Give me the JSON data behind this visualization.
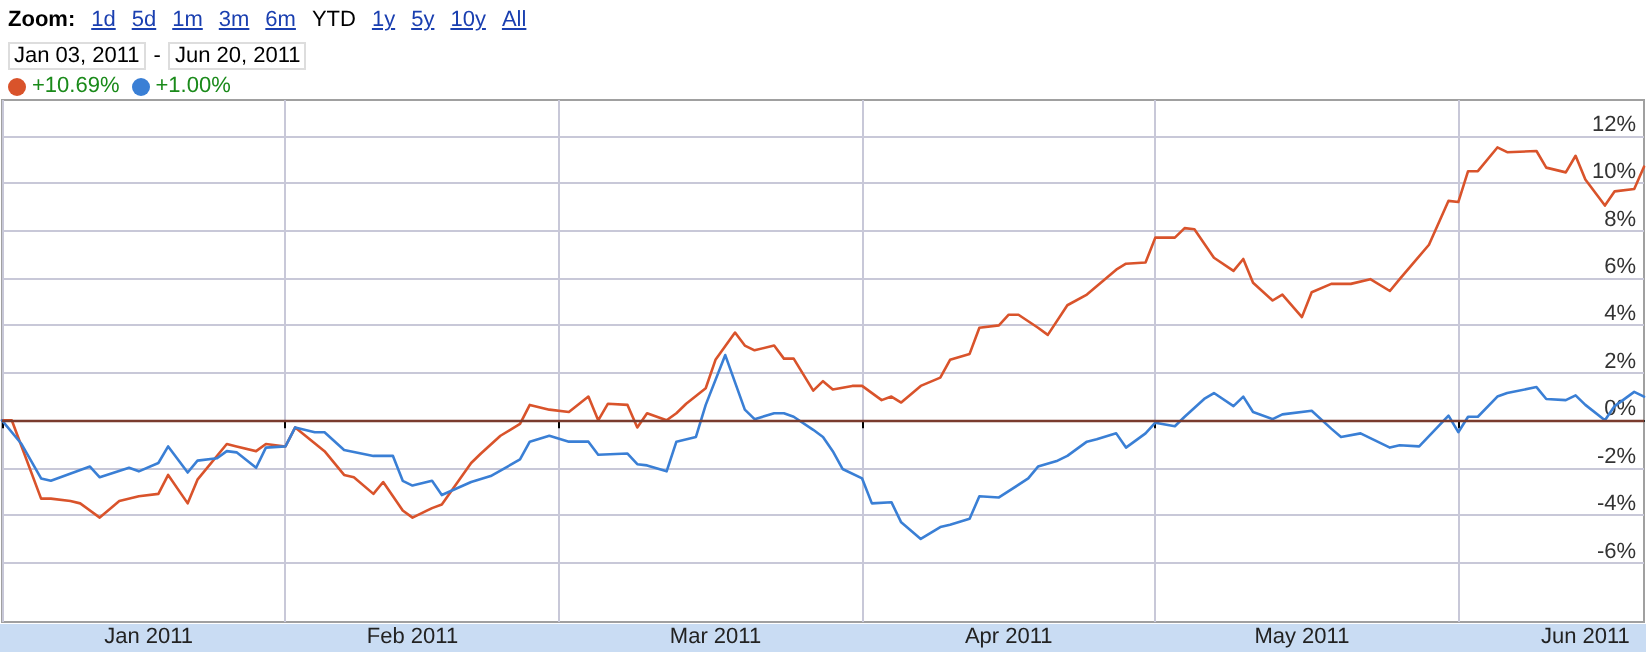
{
  "chart_data": {
    "type": "line",
    "annotations": [
      "Zoom:",
      "1d",
      "5d",
      "1m",
      "3m",
      "6m",
      "YTD",
      "1y",
      "5y",
      "10y",
      "All",
      "Jan 03, 2011",
      "-",
      "Jun 20, 2011",
      "+10.69%",
      "+1.00%"
    ],
    "xlim": [
      "2011-01-03",
      "2011-06-20"
    ],
    "xticks": [
      {
        "value": "2011-01-03",
        "label": null
      },
      {
        "value": "2011-01-18",
        "label": "Jan 2011"
      },
      {
        "value": "2011-02-01",
        "label": null
      },
      {
        "value": "2011-02-14",
        "label": "Feb 2011"
      },
      {
        "value": "2011-03-01",
        "label": null
      },
      {
        "value": "2011-03-17",
        "label": "Mar 2011"
      },
      {
        "value": "2011-04-01",
        "label": null
      },
      {
        "value": "2011-04-16",
        "label": "Apr 2011"
      },
      {
        "value": "2011-05-01",
        "label": null
      },
      {
        "value": "2011-05-16",
        "label": "May 2011"
      },
      {
        "value": "2011-06-01",
        "label": null
      },
      {
        "value": "2011-06-14",
        "label": "Jun 2011"
      }
    ],
    "ylim": [
      -8.5,
      13.5
    ],
    "yticks": [
      {
        "value": -6,
        "label": "-6%"
      },
      {
        "value": -4,
        "label": "-4%"
      },
      {
        "value": -2,
        "label": "-2%"
      },
      {
        "value": 0,
        "label": "0%"
      },
      {
        "value": 2,
        "label": "2%"
      },
      {
        "value": 4,
        "label": "4%"
      },
      {
        "value": 6,
        "label": "6%"
      },
      {
        "value": 8,
        "label": "8%"
      },
      {
        "value": 10,
        "label": "10%"
      },
      {
        "value": 12,
        "label": "12%"
      }
    ],
    "grid": true,
    "marker": "none",
    "line_style": "solid",
    "ref_lines": [
      {
        "axis": "y",
        "value": 0,
        "color": "#7a3b2e"
      }
    ],
    "series": [
      {
        "color": "#d9532b",
        "x": [
          "2011-01-03",
          "2011-01-04",
          "2011-01-07",
          "2011-01-08",
          "2011-01-10",
          "2011-01-11",
          "2011-01-13",
          "2011-01-15",
          "2011-01-17",
          "2011-01-19",
          "2011-01-20",
          "2011-01-22",
          "2011-01-23",
          "2011-01-26",
          "2011-01-27",
          "2011-01-29",
          "2011-01-30",
          "2011-02-01",
          "2011-02-02",
          "2011-02-05",
          "2011-02-07",
          "2011-02-08",
          "2011-02-10",
          "2011-02-11",
          "2011-02-13",
          "2011-02-14",
          "2011-02-16",
          "2011-02-17",
          "2011-02-20",
          "2011-02-21",
          "2011-02-23",
          "2011-02-25",
          "2011-02-26",
          "2011-02-28",
          "2011-03-02",
          "2011-03-04",
          "2011-03-05",
          "2011-03-06",
          "2011-03-08",
          "2011-03-09",
          "2011-03-10",
          "2011-03-12",
          "2011-03-13",
          "2011-03-14",
          "2011-03-16",
          "2011-03-17",
          "2011-03-19",
          "2011-03-20",
          "2011-03-21",
          "2011-03-23",
          "2011-03-24",
          "2011-03-25",
          "2011-03-27",
          "2011-03-28",
          "2011-03-29",
          "2011-03-31",
          "2011-04-01",
          "2011-04-03",
          "2011-04-04",
          "2011-04-05",
          "2011-04-07",
          "2011-04-09",
          "2011-04-10",
          "2011-04-12",
          "2011-04-13",
          "2011-04-15",
          "2011-04-16",
          "2011-04-17",
          "2011-04-19",
          "2011-04-20",
          "2011-04-22",
          "2011-04-24",
          "2011-04-27",
          "2011-04-28",
          "2011-04-30",
          "2011-05-01",
          "2011-05-03",
          "2011-05-04",
          "2011-05-05",
          "2011-05-07",
          "2011-05-09",
          "2011-05-10",
          "2011-05-11",
          "2011-05-13",
          "2011-05-14",
          "2011-05-16",
          "2011-05-17",
          "2011-05-19",
          "2011-05-21",
          "2011-05-23",
          "2011-05-25",
          "2011-05-26",
          "2011-05-29",
          "2011-05-31",
          "2011-06-01",
          "2011-06-02",
          "2011-06-03",
          "2011-06-05",
          "2011-06-06",
          "2011-06-09",
          "2011-06-10",
          "2011-06-12",
          "2011-06-13",
          "2011-06-14",
          "2011-06-16",
          "2011-06-17",
          "2011-06-19",
          "2011-06-20"
        ],
        "values": [
          0,
          0,
          -3.3,
          -3.3,
          -3.4,
          -3.5,
          -4.1,
          -3.4,
          -3.2,
          -3.1,
          -2.3,
          -3.5,
          -2.5,
          -1.0,
          -1.1,
          -1.3,
          -1.0,
          -1.1,
          -0.3,
          -1.3,
          -2.3,
          -2.4,
          -3.1,
          -2.6,
          -3.8,
          -4.1,
          -3.7,
          -3.55,
          -1.8,
          -1.4,
          -0.65,
          -0.15,
          0.65,
          0.45,
          0.35,
          1.0,
          0,
          0.7,
          0.65,
          -0.3,
          0.3,
          0,
          0.3,
          0.7,
          1.35,
          2.55,
          3.7,
          3.15,
          2.95,
          3.15,
          2.6,
          2.6,
          1.25,
          1.65,
          1.3,
          1.45,
          1.45,
          0.85,
          1.0,
          0.75,
          1.45,
          1.8,
          2.55,
          2.8,
          3.9,
          4.0,
          4.45,
          4.45,
          3.9,
          3.6,
          4.85,
          5.3,
          6.35,
          6.6,
          6.65,
          7.7,
          7.7,
          8.1,
          8.05,
          6.85,
          6.3,
          6.8,
          5.8,
          5.05,
          5.3,
          4.35,
          5.4,
          5.75,
          5.75,
          5.95,
          5.45,
          5.95,
          7.4,
          9.25,
          9.2,
          10.5,
          10.5,
          11.5,
          11.3,
          11.35,
          10.65,
          10.45,
          11.15,
          10.15,
          9.05,
          9.65,
          9.75,
          10.69
        ]
      },
      {
        "color": "#3a7fd5",
        "x": [
          "2011-01-03",
          "2011-01-05",
          "2011-01-07",
          "2011-01-08",
          "2011-01-12",
          "2011-01-13",
          "2011-01-16",
          "2011-01-17",
          "2011-01-19",
          "2011-01-20",
          "2011-01-22",
          "2011-01-23",
          "2011-01-25",
          "2011-01-26",
          "2011-01-27",
          "2011-01-29",
          "2011-01-30",
          "2011-02-01",
          "2011-02-02",
          "2011-02-04",
          "2011-02-05",
          "2011-02-07",
          "2011-02-10",
          "2011-02-12",
          "2011-02-13",
          "2011-02-14",
          "2011-02-16",
          "2011-02-17",
          "2011-02-20",
          "2011-02-22",
          "2011-02-25",
          "2011-02-26",
          "2011-02-28",
          "2011-03-02",
          "2011-03-04",
          "2011-03-05",
          "2011-03-08",
          "2011-03-09",
          "2011-03-10",
          "2011-03-12",
          "2011-03-13",
          "2011-03-15",
          "2011-03-16",
          "2011-03-18",
          "2011-03-20",
          "2011-03-21",
          "2011-03-23",
          "2011-03-24",
          "2011-03-25",
          "2011-03-27",
          "2011-03-28",
          "2011-03-29",
          "2011-03-30",
          "2011-04-01",
          "2011-04-02",
          "2011-04-04",
          "2011-04-05",
          "2011-04-07",
          "2011-04-09",
          "2011-04-10",
          "2011-04-12",
          "2011-04-13",
          "2011-04-15",
          "2011-04-18",
          "2011-04-19",
          "2011-04-21",
          "2011-04-22",
          "2011-04-24",
          "2011-04-25",
          "2011-04-27",
          "2011-04-28",
          "2011-04-30",
          "2011-05-01",
          "2011-05-03",
          "2011-05-04",
          "2011-05-06",
          "2011-05-07",
          "2011-05-09",
          "2011-05-10",
          "2011-05-11",
          "2011-05-13",
          "2011-05-14",
          "2011-05-17",
          "2011-05-19",
          "2011-05-20",
          "2011-05-22",
          "2011-05-23",
          "2011-05-25",
          "2011-05-26",
          "2011-05-28",
          "2011-05-31",
          "2011-06-01",
          "2011-06-02",
          "2011-06-03",
          "2011-06-05",
          "2011-06-06",
          "2011-06-09",
          "2011-06-10",
          "2011-06-12",
          "2011-06-13",
          "2011-06-14",
          "2011-06-16",
          "2011-06-17",
          "2011-06-19",
          "2011-06-20"
        ],
        "values": [
          0,
          -1.0,
          -2.45,
          -2.55,
          -1.95,
          -2.4,
          -2.0,
          -2.15,
          -1.8,
          -1.1,
          -2.2,
          -1.7,
          -1.6,
          -1.3,
          -1.35,
          -2.0,
          -1.15,
          -1.1,
          -0.3,
          -0.5,
          -0.5,
          -1.25,
          -1.5,
          -1.5,
          -2.55,
          -2.75,
          -2.55,
          -3.15,
          -2.6,
          -2.35,
          -1.65,
          -0.9,
          -0.65,
          -0.9,
          -0.9,
          -1.45,
          -1.4,
          -1.85,
          -1.9,
          -2.15,
          -0.9,
          -0.7,
          0.65,
          2.75,
          0.45,
          0.05,
          0.3,
          0.3,
          0.15,
          -0.4,
          -0.7,
          -1.3,
          -2.05,
          -2.45,
          -3.5,
          -3.45,
          -4.3,
          -5.0,
          -4.5,
          -4.4,
          -4.15,
          -3.2,
          -3.25,
          -2.45,
          -1.95,
          -1.7,
          -1.5,
          -0.9,
          -0.8,
          -0.55,
          -1.15,
          -0.55,
          -0.1,
          -0.25,
          0.15,
          0.9,
          1.15,
          0.6,
          1.0,
          0.35,
          0.05,
          0.25,
          0.4,
          -0.35,
          -0.7,
          -0.55,
          -0.75,
          -1.15,
          -1.05,
          -1.1,
          0.2,
          -0.5,
          0.15,
          0.15,
          1.0,
          1.15,
          1.4,
          0.9,
          0.85,
          1.05,
          0.65,
          0,
          0.6,
          1.2,
          1.0
        ]
      }
    ]
  }
}
